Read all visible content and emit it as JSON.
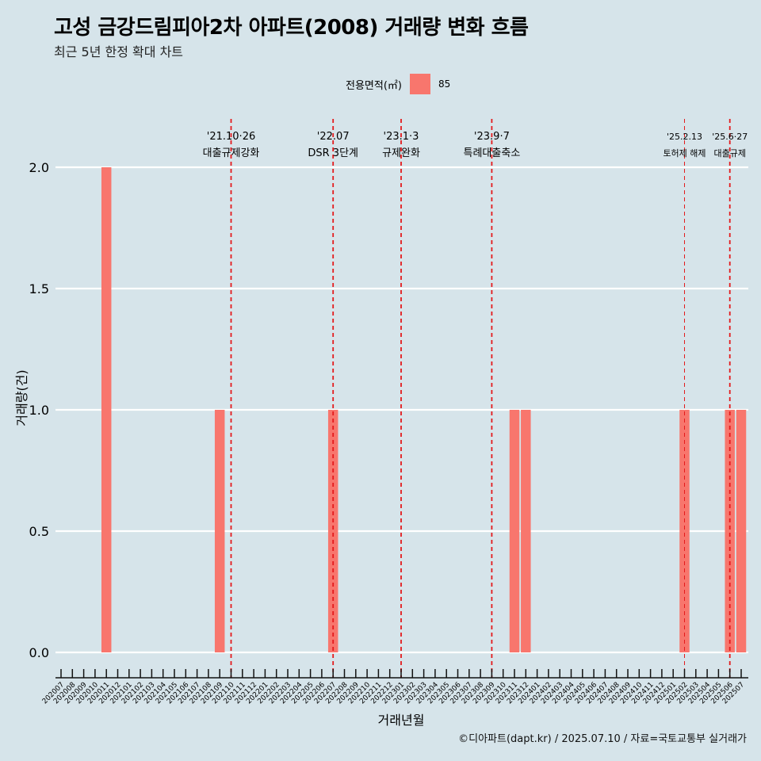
{
  "title": "고성 금강드림피아2차 아파트(2008) 거래량 변화 흐름",
  "subtitle": "최근 5년 한정 확대 차트",
  "legend": {
    "title": "전용면적(㎡)",
    "item": "85"
  },
  "footer": "©디아파트(dapt.kr) / 2025.07.10 / 자료=국토교통부 실거래가",
  "chart_data": {
    "type": "bar",
    "xlabel": "거래년월",
    "ylabel": "거래량(건)",
    "ylim": [
      0,
      2
    ],
    "yticks": [
      "0.0",
      "0.5",
      "1.0",
      "1.5",
      "2.0"
    ],
    "bar_color": "#f8766d",
    "event_line_color": "#e41a1c",
    "categories": [
      "202007",
      "202008",
      "202009",
      "202010",
      "202011",
      "202012",
      "202101",
      "202102",
      "202103",
      "202104",
      "202105",
      "202106",
      "202107",
      "202108",
      "202109",
      "202110",
      "202111",
      "202112",
      "202201",
      "202202",
      "202203",
      "202204",
      "202205",
      "202206",
      "202207",
      "202208",
      "202209",
      "202210",
      "202211",
      "202212",
      "202301",
      "202302",
      "202303",
      "202304",
      "202305",
      "202306",
      "202307",
      "202308",
      "202309",
      "202310",
      "202311",
      "202312",
      "202401",
      "202402",
      "202403",
      "202404",
      "202405",
      "202406",
      "202407",
      "202408",
      "202409",
      "202410",
      "202411",
      "202412",
      "202501",
      "202502",
      "202503",
      "202504",
      "202505",
      "202506",
      "202507"
    ],
    "series": [
      {
        "name": "85",
        "values": [
          0,
          0,
          0,
          0,
          2,
          0,
          0,
          0,
          0,
          0,
          0,
          0,
          0,
          0,
          1,
          0,
          0,
          0,
          0,
          0,
          0,
          0,
          0,
          0,
          1,
          0,
          0,
          0,
          0,
          0,
          0,
          0,
          0,
          0,
          0,
          0,
          0,
          0,
          0,
          0,
          1,
          1,
          0,
          0,
          0,
          0,
          0,
          0,
          0,
          0,
          0,
          0,
          0,
          0,
          0,
          1,
          0,
          0,
          0,
          1,
          1
        ]
      }
    ],
    "events": [
      {
        "date": "'21.10·26",
        "label": "대출규제강화",
        "x": "202110"
      },
      {
        "date": "'22.07",
        "label": "DSR 3단계",
        "x": "202207"
      },
      {
        "date": "'23.1·3",
        "label": "규제완화",
        "x": "202301"
      },
      {
        "date": "'23.9·7",
        "label": "특례대출축소",
        "x": "202309"
      },
      {
        "date": "'25.2.13",
        "label": "토허제 해제",
        "x": "202502"
      },
      {
        "date": "'25.6·27",
        "label": "대출규제",
        "x": "202506"
      }
    ]
  }
}
